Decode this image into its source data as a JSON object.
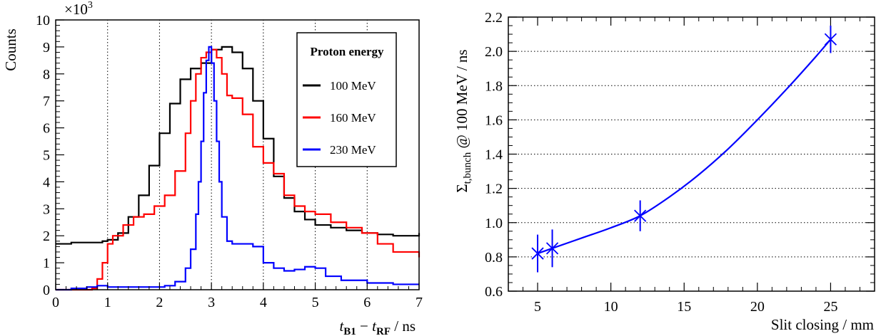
{
  "colors": {
    "black": "#000000",
    "red": "#ff0000",
    "blue": "#0000ff"
  },
  "chart_data": [
    {
      "type": "line",
      "style": "histogram",
      "title": "",
      "xlabel": {
        "t1": "t",
        "s1": "B1",
        "mid": " − ",
        "t2": "t",
        "s2": "RF",
        "unit": " / ns"
      },
      "ylabel": "Counts",
      "multiplier": {
        "base": "×10",
        "exp": "3"
      },
      "xlim": [
        0,
        7
      ],
      "ylim": [
        0,
        10
      ],
      "xticks": [
        "0",
        "1",
        "2",
        "3",
        "4",
        "5",
        "6",
        "7"
      ],
      "yticks": [
        "0",
        "1",
        "2",
        "3",
        "4",
        "5",
        "6",
        "7",
        "8",
        "9",
        "10"
      ],
      "grid": "vertical dotted",
      "legend": {
        "title": "Proton energy",
        "position": "top-right",
        "entries": [
          "100 MeV",
          "160 MeV",
          "230 MeV"
        ]
      },
      "series": [
        {
          "name": "100 MeV",
          "color": "#000000",
          "x": [
            0,
            0.3,
            0.6,
            0.9,
            1.0,
            1.2,
            1.4,
            1.6,
            1.8,
            2.0,
            2.2,
            2.4,
            2.6,
            2.8,
            3.0,
            3.2,
            3.4,
            3.6,
            3.8,
            4.0,
            4.2,
            4.4,
            4.6,
            4.8,
            5.0,
            5.3,
            5.6,
            5.9,
            6.2,
            6.5,
            7.0
          ],
          "y": [
            1.7,
            1.75,
            1.75,
            1.8,
            1.85,
            2.1,
            2.7,
            3.5,
            4.6,
            5.8,
            6.9,
            7.8,
            8.2,
            8.4,
            8.9,
            9.0,
            8.8,
            8.2,
            7.0,
            5.6,
            4.2,
            3.4,
            2.9,
            2.6,
            2.4,
            2.3,
            2.2,
            2.1,
            2.05,
            2.0,
            2.1
          ]
        },
        {
          "name": "160 MeV",
          "color": "#ff0000",
          "x": [
            0,
            0.4,
            0.7,
            0.8,
            0.9,
            1.0,
            1.1,
            1.3,
            1.5,
            1.7,
            1.9,
            2.1,
            2.3,
            2.5,
            2.6,
            2.7,
            2.8,
            2.9,
            3.0,
            3.1,
            3.2,
            3.3,
            3.4,
            3.6,
            3.8,
            4.0,
            4.2,
            4.4,
            4.6,
            4.8,
            5.0,
            5.3,
            5.6,
            5.9,
            6.2,
            6.5,
            7.0
          ],
          "y": [
            0,
            0,
            0.05,
            0.4,
            1.0,
            1.7,
            2.0,
            2.4,
            2.7,
            2.8,
            3.1,
            3.5,
            4.4,
            5.8,
            7.0,
            8.0,
            8.6,
            8.8,
            8.9,
            8.6,
            8.0,
            7.2,
            7.1,
            6.5,
            5.3,
            4.7,
            4.3,
            3.5,
            3.1,
            2.9,
            2.8,
            2.5,
            2.3,
            2.1,
            1.7,
            1.4,
            1.2
          ]
        },
        {
          "name": "230 MeV",
          "color": "#0000ff",
          "x": [
            0,
            0.3,
            0.6,
            0.8,
            1.0,
            1.4,
            1.8,
            2.1,
            2.3,
            2.5,
            2.6,
            2.7,
            2.75,
            2.8,
            2.85,
            2.9,
            2.95,
            3.0,
            3.05,
            3.1,
            3.15,
            3.2,
            3.3,
            3.4,
            3.6,
            3.8,
            4.0,
            4.2,
            4.4,
            4.6,
            4.8,
            5.0,
            5.2,
            5.5,
            6.0,
            6.5,
            7.0
          ],
          "y": [
            0.0,
            0.05,
            0.1,
            0.15,
            0.1,
            0.1,
            0.1,
            0.15,
            0.3,
            0.8,
            1.5,
            2.8,
            4.0,
            5.5,
            7.3,
            8.5,
            9.0,
            8.4,
            7.0,
            5.5,
            4.0,
            2.7,
            1.8,
            1.7,
            1.7,
            1.6,
            1.0,
            0.8,
            0.7,
            0.75,
            0.85,
            0.8,
            0.5,
            0.35,
            0.25,
            0.2,
            0.2
          ]
        }
      ]
    },
    {
      "type": "scatter",
      "title": "",
      "xlabel": "Slit closing / mm",
      "ylabel": {
        "sym": "Σ",
        "sub": "t,bunch",
        "rest": " @ 100 MeV / ns"
      },
      "xlim": [
        3,
        28
      ],
      "ylim": [
        0.6,
        2.2
      ],
      "xticks": [
        "5",
        "10",
        "15",
        "20",
        "25"
      ],
      "yticks": [
        "0.6",
        "0.8",
        "1.0",
        "1.2",
        "1.4",
        "1.6",
        "1.8",
        "2.0",
        "2.2"
      ],
      "grid": "horizontal dotted",
      "color": "#0000ff",
      "points": [
        {
          "x": 5,
          "y": 0.82,
          "err": 0.11
        },
        {
          "x": 6,
          "y": 0.85,
          "err": 0.11
        },
        {
          "x": 12,
          "y": 1.04,
          "err": 0.09
        },
        {
          "x": 25,
          "y": 2.07,
          "err": 0.08
        }
      ],
      "fit": {
        "x": [
          5,
          6,
          8,
          10,
          12,
          14,
          16,
          18,
          20,
          22,
          24,
          25
        ],
        "y": [
          0.82,
          0.85,
          0.91,
          0.97,
          1.04,
          1.15,
          1.28,
          1.43,
          1.6,
          1.78,
          1.97,
          2.07
        ]
      }
    }
  ]
}
